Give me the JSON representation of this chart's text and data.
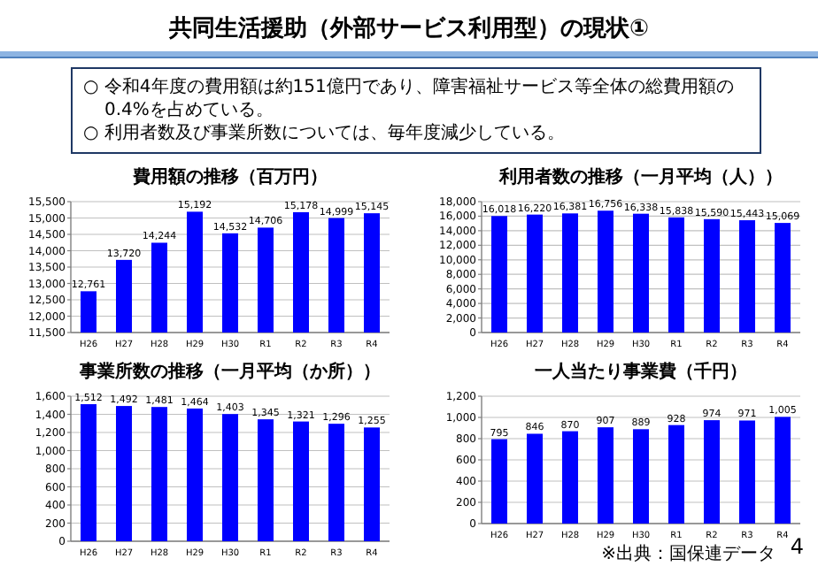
{
  "chart_data": [
    {
      "type": "other",
      "title": "共同生活援助（外部サービス利用型）の現状①",
      "annotations": [
        "○ 令和4年度の費用額は約151億円であり、障害福祉サービス等全体の総費用額の0.4%を占めている。",
        "○ 利用者数及び事業所数については、毎年度減少している。",
        "4"
      ]
    },
    {
      "type": "bar",
      "title": "費用額の推移（百万円）",
      "categories": [
        "H26",
        "H27",
        "H28",
        "H29",
        "H30",
        "R1",
        "R2",
        "R3",
        "R4"
      ],
      "color": "#0000ff",
      "grid": "y",
      "values": [
        12761,
        13720,
        14244,
        15192,
        14532,
        14706,
        15178,
        14999,
        15145
      ],
      "value_labels": [
        "12,761",
        "13,720",
        "14,244",
        "15,192",
        "14,532",
        "14,706",
        "15,178",
        "14,999",
        "15,145"
      ],
      "ylim": [
        11500,
        15500
      ],
      "yticks": [
        {
          "value": 11500,
          "label": "11,500"
        },
        {
          "value": 12000,
          "label": "12,000"
        },
        {
          "value": 12500,
          "label": "12,500"
        },
        {
          "value": 13000,
          "label": "13,000"
        },
        {
          "value": 13500,
          "label": "13,500"
        },
        {
          "value": 14000,
          "label": "14,000"
        },
        {
          "value": 14500,
          "label": "14,500"
        },
        {
          "value": 15000,
          "label": "15,000"
        },
        {
          "value": 15500,
          "label": "15,500"
        }
      ]
    },
    {
      "type": "bar",
      "title": "利用者数の推移（一月平均（人））",
      "categories": [
        "H26",
        "H27",
        "H28",
        "H29",
        "H30",
        "R1",
        "R2",
        "R3",
        "R4"
      ],
      "color": "#0000ff",
      "grid": "y",
      "values": [
        16018,
        16220,
        16381,
        16756,
        16338,
        15838,
        15590,
        15443,
        15069
      ],
      "value_labels": [
        "16,018",
        "16,220",
        "16,381",
        "16,756",
        "16,338",
        "15,838",
        "15,590",
        "15,443",
        "15,069"
      ],
      "ylim": [
        0,
        18000
      ],
      "yticks": [
        0,
        {
          "value": 2000,
          "label": "2,000"
        },
        {
          "value": 4000,
          "label": "4,000"
        },
        {
          "value": 6000,
          "label": "6,000"
        },
        {
          "value": 8000,
          "label": "8,000"
        },
        {
          "value": 10000,
          "label": "10,000"
        },
        {
          "value": 12000,
          "label": "12,000"
        },
        {
          "value": 14000,
          "label": "14,000"
        },
        {
          "value": 16000,
          "label": "16,000"
        },
        {
          "value": 18000,
          "label": "18,000"
        }
      ]
    },
    {
      "type": "bar",
      "title": "事業所数の推移（一月平均（か所））",
      "categories": [
        "H26",
        "H27",
        "H28",
        "H29",
        "H30",
        "R1",
        "R2",
        "R3",
        "R4"
      ],
      "color": "#0000ff",
      "grid": "y",
      "values": [
        1512,
        1492,
        1481,
        1464,
        1403,
        1345,
        1321,
        1296,
        1255
      ],
      "value_labels": [
        "1,512",
        "1,492",
        "1,481",
        "1,464",
        "1,403",
        "1,345",
        "1,321",
        "1,296",
        "1,255"
      ],
      "ylim": [
        0,
        1600
      ],
      "yticks": [
        0,
        200,
        400,
        600,
        800,
        {
          "value": 1000,
          "label": "1,000"
        },
        {
          "value": 1200,
          "label": "1,200"
        },
        {
          "value": 1400,
          "label": "1,400"
        },
        {
          "value": 1600,
          "label": "1,600"
        }
      ]
    },
    {
      "type": "bar",
      "title": "一人当たり事業費（千円）",
      "categories": [
        "H26",
        "H27",
        "H28",
        "H29",
        "H30",
        "R1",
        "R2",
        "R3",
        "R4"
      ],
      "color": "#0000ff",
      "grid": "y",
      "values": [
        795,
        846,
        870,
        907,
        889,
        928,
        974,
        971,
        1005
      ],
      "value_labels": [
        "795",
        "846",
        "870",
        "907",
        "889",
        "928",
        "974",
        "971",
        "1,005"
      ],
      "ylim": [
        0,
        1200
      ],
      "yticks": [
        0,
        200,
        400,
        600,
        800,
        {
          "value": 1000,
          "label": "1,000"
        },
        {
          "value": 1200,
          "label": "1,200"
        }
      ],
      "annotations": [
        "※出典：国保連データ"
      ]
    }
  ]
}
